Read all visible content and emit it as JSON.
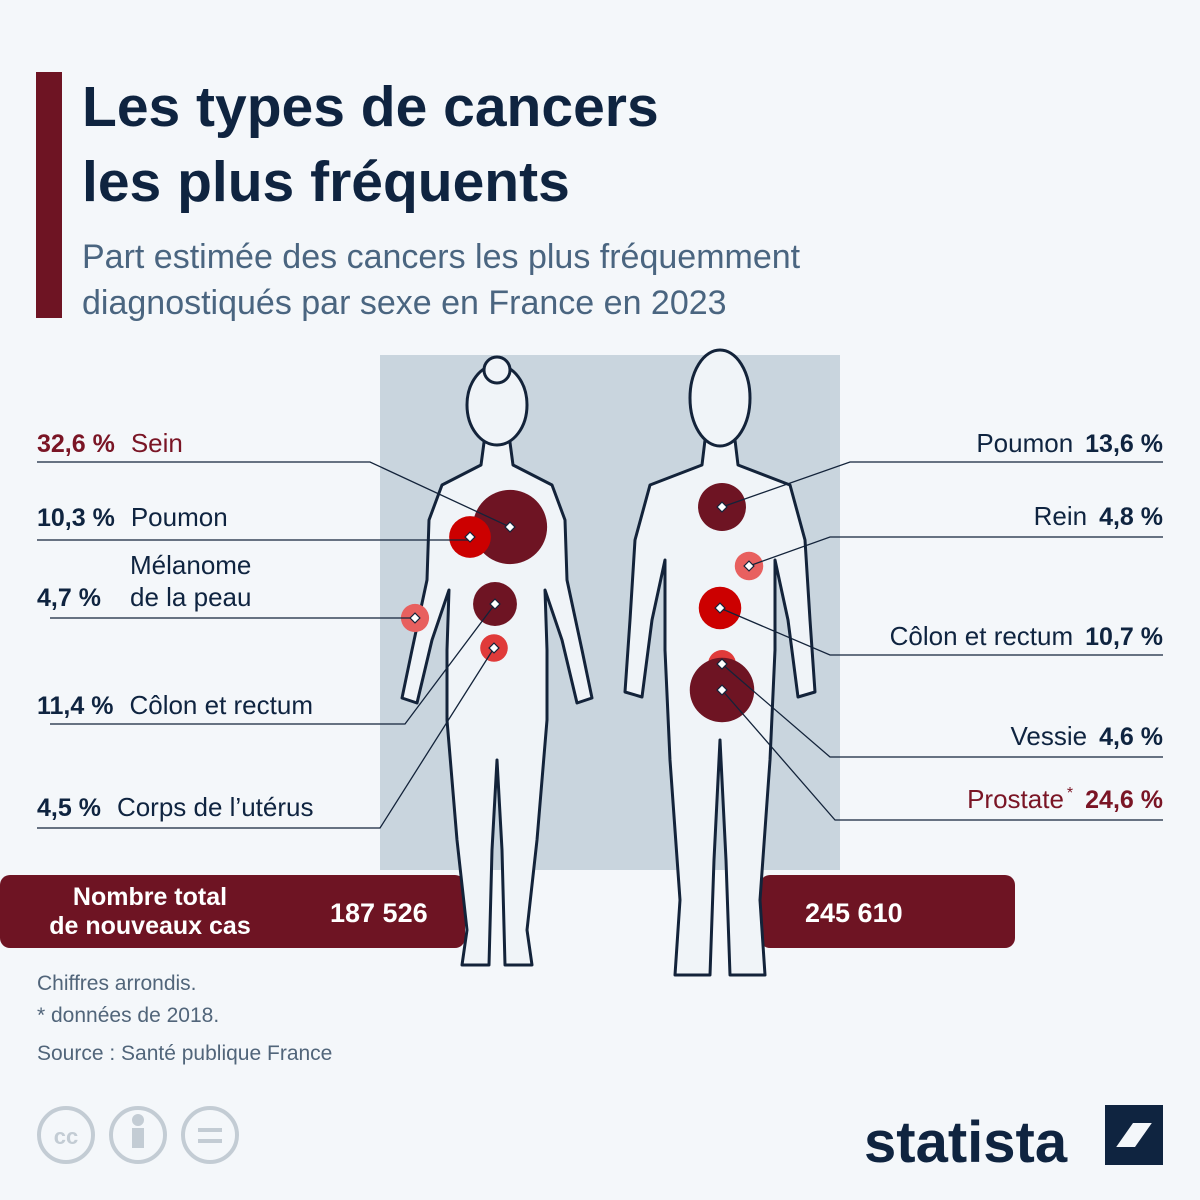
{
  "header": {
    "title_lines": [
      "Les types de cancers",
      "les plus fréquents"
    ],
    "subtitle_lines": [
      "Part estimée des cancers les plus fréquemment",
      "diagnostiqués par sexe en France en 2023"
    ]
  },
  "women": {
    "items": [
      {
        "name": "Sein",
        "share": {
          "value": 32.6,
          "label": "32,6 %"
        },
        "color": "#6e1423"
      },
      {
        "name": "Poumon",
        "share": {
          "value": 10.3,
          "label": "10,3 %"
        },
        "color": "#cc0000"
      },
      {
        "name_lines": [
          "Mélanome",
          "de la peau"
        ],
        "share": {
          "value": 4.7,
          "label": "4,7 %"
        },
        "color": "#e8605f"
      },
      {
        "name": "Côlon et rectum",
        "share": {
          "value": 11.4,
          "label": "11,4 %"
        },
        "color": "#6e1423"
      },
      {
        "name": "Corps de l’utérus",
        "share": {
          "value": 4.5,
          "label": "4,5 %"
        },
        "color": "#e03a3a"
      }
    ],
    "total": "187 526"
  },
  "men": {
    "items": [
      {
        "name": "Poumon",
        "share": {
          "value": 13.6,
          "label": "13,6 %"
        },
        "color": "#6e1423"
      },
      {
        "name": "Rein",
        "share": {
          "value": 4.8,
          "label": "4,8 %"
        },
        "color": "#e8605f"
      },
      {
        "name": "Côlon et rectum",
        "share": {
          "value": 10.7,
          "label": "10,7 %"
        },
        "color": "#cc0000"
      },
      {
        "name": "Vessie",
        "share": {
          "value": 4.6,
          "label": "4,6 %"
        },
        "color": "#e03a3a"
      },
      {
        "name": "Prostate",
        "footnote_mark": "*",
        "share": {
          "value": 24.6,
          "label": "24,6 %"
        },
        "color": "#6e1423"
      }
    ],
    "total": "245 610"
  },
  "totals_label_lines": [
    "Nombre total",
    "de nouveaux cas"
  ],
  "notes": [
    "Chiffres arrondis.",
    "* données de 2018.",
    "Source : Santé publique France"
  ],
  "brand": "statista"
}
